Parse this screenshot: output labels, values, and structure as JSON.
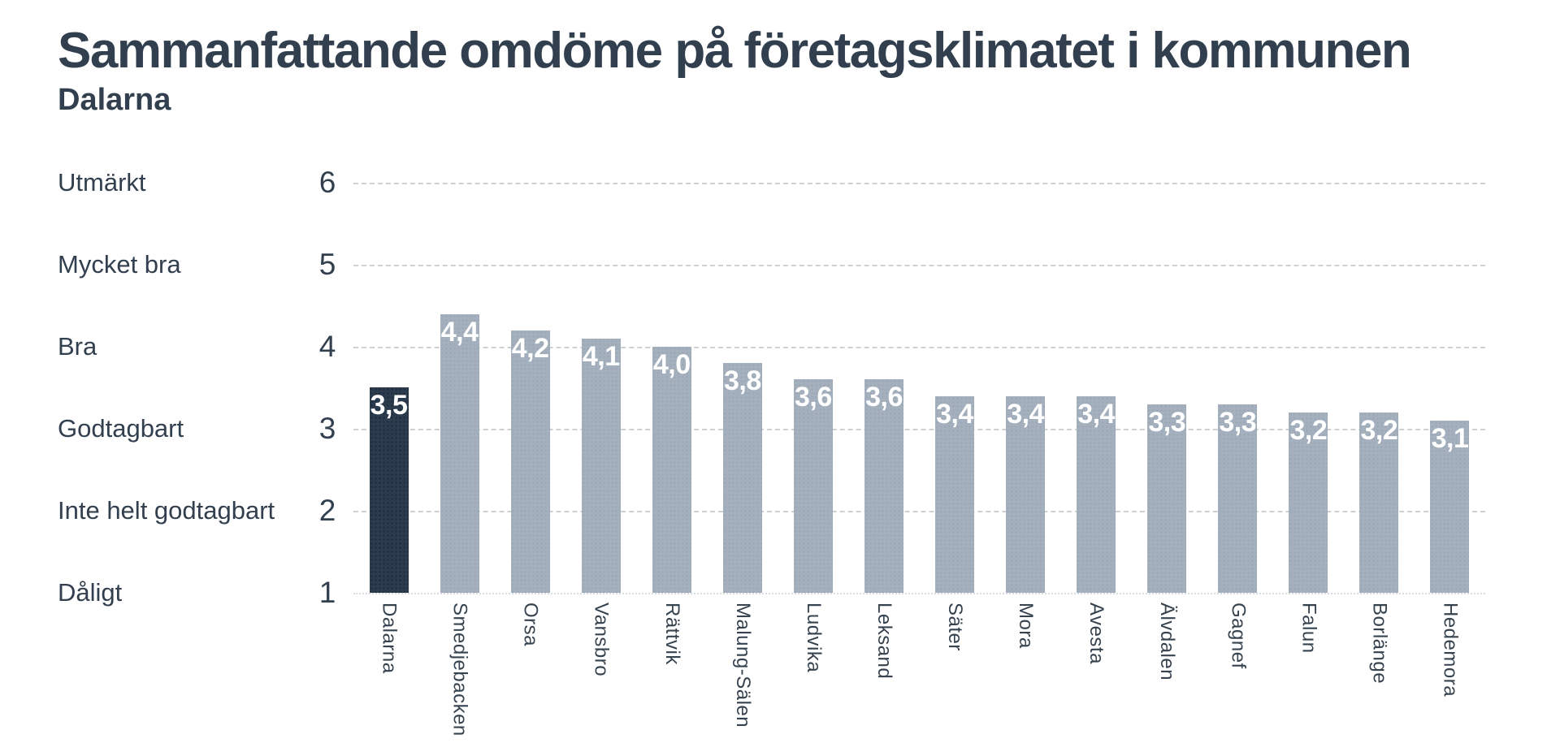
{
  "header": {
    "title": "Sammanfattande omdöme på företagsklimatet i kommunen",
    "subtitle": "Dalarna"
  },
  "chart_data": {
    "type": "bar",
    "title": "Sammanfattande omdöme på företagsklimatet i kommunen",
    "subtitle": "Dalarna",
    "categories": [
      "Dalarna",
      "Smedjebacken",
      "Orsa",
      "Vansbro",
      "Rättvik",
      "Malung-Sälen",
      "Ludvika",
      "Leksand",
      "Säter",
      "Mora",
      "Avesta",
      "Älvdalen",
      "Gagnef",
      "Falun",
      "Borlänge",
      "Hedemora"
    ],
    "values": [
      3.5,
      4.4,
      4.2,
      4.1,
      4.0,
      3.8,
      3.6,
      3.6,
      3.4,
      3.4,
      3.4,
      3.3,
      3.3,
      3.2,
      3.2,
      3.1
    ],
    "value_labels": [
      "3,5",
      "4,4",
      "4,2",
      "4,1",
      "4,0",
      "3,8",
      "3,6",
      "3,6",
      "3,4",
      "3,4",
      "3,4",
      "3,3",
      "3,3",
      "3,2",
      "3,2",
      "3,1"
    ],
    "highlight_index": 0,
    "highlight_category": "Dalarna",
    "y_axis": {
      "min": 1,
      "max": 6,
      "ticks": [
        6,
        5,
        4,
        3,
        2,
        1
      ],
      "tick_ratings": [
        "Utmärkt",
        "Mycket bra",
        "Bra",
        "Godtagbart",
        "Inte helt godtagbart",
        "Dåligt"
      ]
    },
    "xlabel": "",
    "ylabel": "",
    "ylim": [
      1,
      6
    ],
    "grid": "horizontal-dashed",
    "legend": "none",
    "colors": {
      "bar": "#a4b0bd",
      "highlight_bar": "#2b3c4e",
      "title_text": "#323f4e",
      "axis_text": "#323f4e",
      "value_text": "#ffffff",
      "gridline": "#ccd1d6",
      "background": "#ffffff"
    }
  }
}
